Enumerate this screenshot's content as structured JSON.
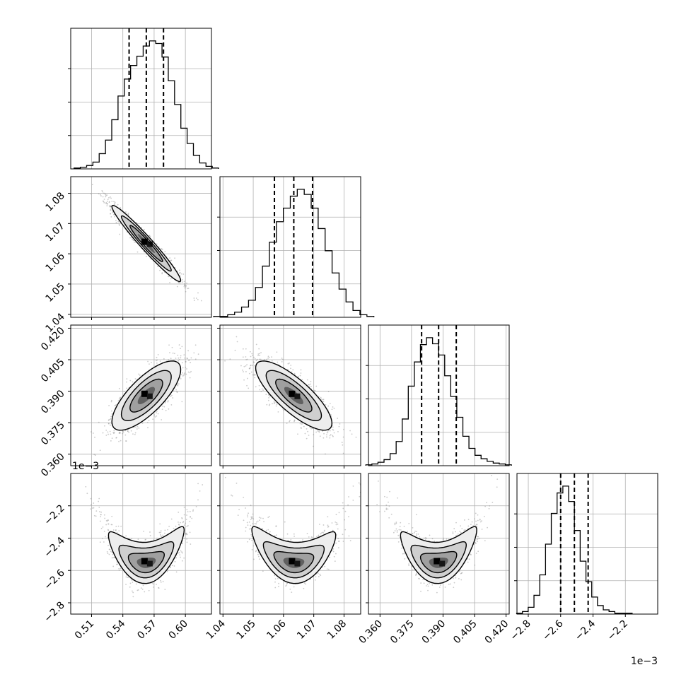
{
  "chart_data": {
    "type": "corner",
    "parameters": [
      {
        "ticks": [
          "0.51",
          "0.54",
          "0.57",
          "0.60"
        ],
        "tick_values": [
          0.51,
          0.54,
          0.57,
          0.6
        ],
        "range": [
          0.49,
          0.625
        ],
        "quantiles": [
          0.546,
          0.5625,
          0.579
        ]
      },
      {
        "ticks": [
          "1.04",
          "1.05",
          "1.06",
          "1.07",
          "1.08"
        ],
        "tick_values": [
          1.04,
          1.05,
          1.06,
          1.07,
          1.08
        ],
        "range": [
          1.039,
          1.0855
        ],
        "quantiles": [
          1.057,
          1.0634,
          1.0696
        ]
      },
      {
        "ticks": [
          "0.360",
          "0.375",
          "0.390",
          "0.405",
          "0.420"
        ],
        "tick_values": [
          0.36,
          0.375,
          0.39,
          0.405,
          0.42
        ],
        "range": [
          0.3545,
          0.4215
        ],
        "quantiles": [
          0.3798,
          0.3879,
          0.3963
        ]
      },
      {
        "ticks": [
          "−2.8",
          "−2.6",
          "−2.4",
          "−2.2"
        ],
        "tick_values": [
          -2.8,
          -2.6,
          -2.4,
          -2.2
        ],
        "range": [
          -2.87,
          -2.0
        ],
        "quantiles": [
          -2.6,
          -2.515,
          -2.43
        ],
        "offset_label": "1e−3"
      }
    ],
    "histograms": [
      [
        1,
        2,
        4,
        8,
        18,
        34,
        58,
        86,
        106,
        122,
        133,
        145,
        151,
        148,
        132,
        104,
        76,
        48,
        30,
        16,
        7,
        3,
        1
      ],
      [
        1,
        1,
        3,
        6,
        12,
        20,
        35,
        60,
        88,
        112,
        128,
        142,
        150,
        144,
        128,
        104,
        78,
        52,
        33,
        18,
        8,
        3,
        1
      ],
      [
        1,
        2,
        4,
        7,
        14,
        28,
        54,
        92,
        120,
        140,
        148,
        141,
        128,
        104,
        80,
        56,
        34,
        20,
        12,
        8,
        5,
        3,
        2,
        1
      ],
      [
        1,
        3,
        8,
        22,
        46,
        82,
        118,
        142,
        150,
        132,
        98,
        62,
        38,
        20,
        10,
        5,
        3,
        1,
        1,
        1
      ]
    ],
    "correlations": {
      "1,0": -0.97,
      "2,0": 0.75,
      "2,1": -0.8
    },
    "v_shape_panels": [
      "3,0",
      "3,1",
      "3,2"
    ],
    "grid": true,
    "quantile_lines": "dashed"
  }
}
